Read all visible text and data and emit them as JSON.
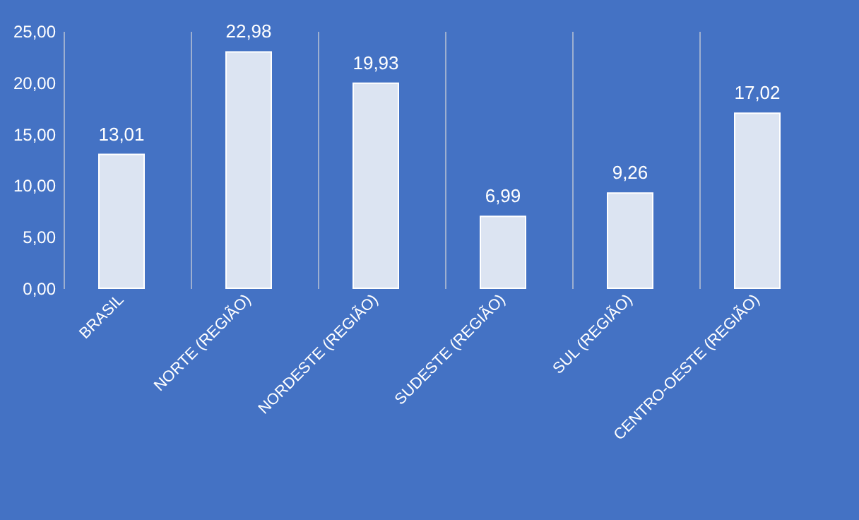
{
  "chart_data": {
    "type": "bar",
    "categories": [
      "BRASIL",
      "NORTE (REGIÃO)",
      "NORDESTE (REGIÃO)",
      "SUDESTE (REGIÃO)",
      "SUL (REGIÃO)",
      "CENTRO-OESTE (REGIÃO)"
    ],
    "values": [
      13.01,
      22.98,
      19.93,
      6.99,
      9.26,
      17.02
    ],
    "value_labels": [
      "13,01",
      "22,98",
      "19,93",
      "6,99",
      "9,26",
      "17,02"
    ],
    "color": "#dce4f2",
    "ylim": [
      0,
      25
    ],
    "yticks": [
      {
        "value": 0,
        "label": "0,00"
      },
      {
        "value": 5,
        "label": "5,00"
      },
      {
        "value": 10,
        "label": "10,00"
      },
      {
        "value": 15,
        "label": "15,00"
      },
      {
        "value": 20,
        "label": "20,00"
      },
      {
        "value": 25,
        "label": "25,00"
      }
    ],
    "grid": "x"
  }
}
